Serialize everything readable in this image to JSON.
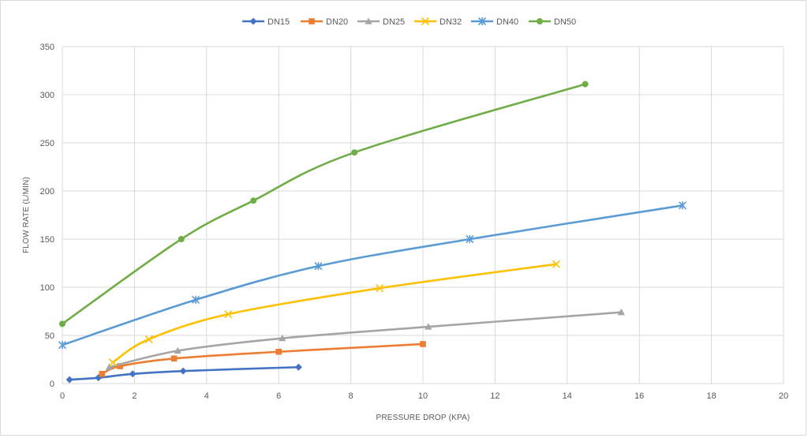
{
  "chart_data": {
    "type": "line",
    "title": "",
    "xlabel": "PRESSURE DROP (KPA)",
    "ylabel": "FLOW RATE (L/MIN)",
    "xlim": [
      0,
      20
    ],
    "ylim": [
      0,
      350
    ],
    "xticks": [
      0,
      2,
      4,
      6,
      8,
      10,
      12,
      14,
      16,
      18,
      20
    ],
    "yticks": [
      0,
      50,
      100,
      150,
      200,
      250,
      300,
      350
    ],
    "grid": true,
    "legend_position": "top",
    "series": [
      {
        "name": "DN15",
        "color": "#4472c4",
        "marker": "diamond",
        "x": [
          0.2,
          1.0,
          1.95,
          3.35,
          6.55
        ],
        "y": [
          4,
          6,
          10,
          13,
          17
        ]
      },
      {
        "name": "DN20",
        "color": "#ed7d31",
        "marker": "square",
        "x": [
          1.1,
          1.6,
          3.1,
          6.0,
          10.0
        ],
        "y": [
          10,
          18,
          26,
          33,
          41
        ]
      },
      {
        "name": "DN25",
        "color": "#a5a5a5",
        "marker": "triangle",
        "x": [
          1.3,
          3.2,
          6.1,
          10.15,
          15.5
        ],
        "y": [
          17,
          34,
          47,
          59,
          74
        ]
      },
      {
        "name": "DN32",
        "color": "#ffc000",
        "marker": "x",
        "x": [
          1.4,
          2.4,
          4.6,
          8.8,
          13.7
        ],
        "y": [
          22,
          46,
          72,
          99,
          124
        ]
      },
      {
        "name": "DN40",
        "color": "#5b9bd5",
        "marker": "star",
        "x": [
          0.0,
          3.7,
          7.1,
          11.3,
          17.2
        ],
        "y": [
          40,
          87,
          122,
          150,
          185
        ]
      },
      {
        "name": "DN50",
        "color": "#70ad47",
        "marker": "circle",
        "x": [
          0.0,
          3.3,
          5.3,
          8.1,
          14.5
        ],
        "y": [
          62,
          150,
          190,
          240,
          311
        ]
      }
    ]
  }
}
